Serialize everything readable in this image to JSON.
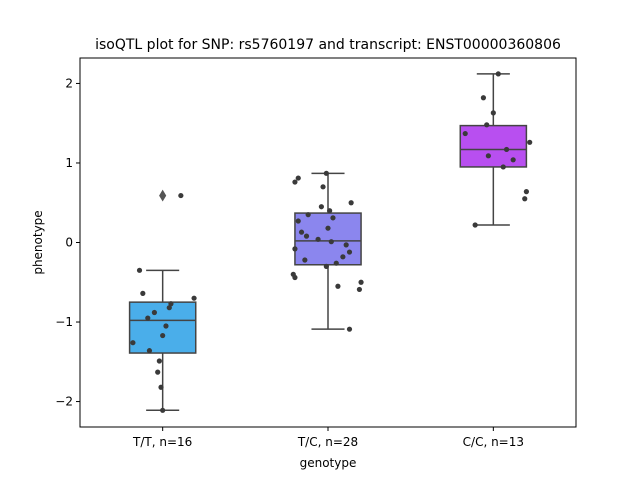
{
  "chart_data": {
    "type": "box",
    "title": "isoQTL plot for SNP: rs5760197 and transcript: ENST00000360806",
    "xlabel": "genotype",
    "ylabel": "phenotype",
    "ylim": [
      -2.32,
      2.32
    ],
    "yticks": [
      {
        "value": -2,
        "label": "−2"
      },
      {
        "value": -1,
        "label": "−1"
      },
      {
        "value": 0,
        "label": "0"
      },
      {
        "value": 1,
        "label": "1"
      },
      {
        "value": 2,
        "label": "2"
      }
    ],
    "grid": false,
    "legend": "none",
    "categories": [
      "T/T, n=16",
      "T/C, n=28",
      "C/C, n=13"
    ],
    "boxes": [
      {
        "category": "T/T, n=16",
        "color": "#4aaeea",
        "q1": -1.39,
        "median": -0.98,
        "q3": -0.75,
        "whisker_low": -2.11,
        "whisker_high": -0.35,
        "outliers": [
          0.59
        ],
        "points": [
          [
            0.11,
            0.59
          ],
          [
            -0.14,
            -0.35
          ],
          [
            -0.12,
            -0.64
          ],
          [
            0.19,
            -0.7
          ],
          [
            0.05,
            -0.77
          ],
          [
            0.04,
            -0.82
          ],
          [
            -0.05,
            -0.88
          ],
          [
            -0.09,
            -0.95
          ],
          [
            0.02,
            -1.05
          ],
          [
            0.0,
            -1.17
          ],
          [
            -0.18,
            -1.26
          ],
          [
            -0.08,
            -1.36
          ],
          [
            -0.02,
            -1.49
          ],
          [
            -0.03,
            -1.63
          ],
          [
            -0.01,
            -1.82
          ],
          [
            0.0,
            -2.11
          ]
        ]
      },
      {
        "category": "T/C, n=28",
        "color": "#8b86ee",
        "q1": -0.28,
        "median": 0.02,
        "q3": 0.37,
        "whisker_low": -1.09,
        "whisker_high": 0.87,
        "outliers": [],
        "points": [
          [
            -0.01,
            0.87
          ],
          [
            -0.18,
            0.81
          ],
          [
            -0.2,
            0.76
          ],
          [
            -0.03,
            0.7
          ],
          [
            0.14,
            0.5
          ],
          [
            -0.04,
            0.45
          ],
          [
            0.01,
            0.4
          ],
          [
            -0.12,
            0.35
          ],
          [
            0.03,
            0.31
          ],
          [
            -0.18,
            0.27
          ],
          [
            0.0,
            0.18
          ],
          [
            -0.16,
            0.13
          ],
          [
            -0.13,
            0.08
          ],
          [
            -0.06,
            0.04
          ],
          [
            0.02,
            0.01
          ],
          [
            0.11,
            -0.03
          ],
          [
            -0.2,
            -0.08
          ],
          [
            0.13,
            -0.12
          ],
          [
            0.09,
            -0.18
          ],
          [
            -0.14,
            -0.22
          ],
          [
            0.05,
            -0.26
          ],
          [
            -0.01,
            -0.3
          ],
          [
            -0.21,
            -0.4
          ],
          [
            -0.2,
            -0.44
          ],
          [
            0.2,
            -0.5
          ],
          [
            0.06,
            -0.55
          ],
          [
            0.19,
            -0.59
          ],
          [
            0.13,
            -1.09
          ]
        ]
      },
      {
        "category": "C/C, n=13",
        "color": "#b84ff0",
        "q1": 0.95,
        "median": 1.17,
        "q3": 1.47,
        "whisker_low": 0.22,
        "whisker_high": 2.12,
        "outliers": [],
        "points": [
          [
            0.03,
            2.12
          ],
          [
            -0.06,
            1.82
          ],
          [
            0.0,
            1.63
          ],
          [
            -0.04,
            1.48
          ],
          [
            -0.17,
            1.37
          ],
          [
            0.22,
            1.26
          ],
          [
            0.08,
            1.17
          ],
          [
            -0.03,
            1.09
          ],
          [
            0.12,
            1.04
          ],
          [
            0.06,
            0.95
          ],
          [
            0.2,
            0.64
          ],
          [
            0.19,
            0.55
          ],
          [
            -0.11,
            0.22
          ]
        ]
      }
    ]
  }
}
